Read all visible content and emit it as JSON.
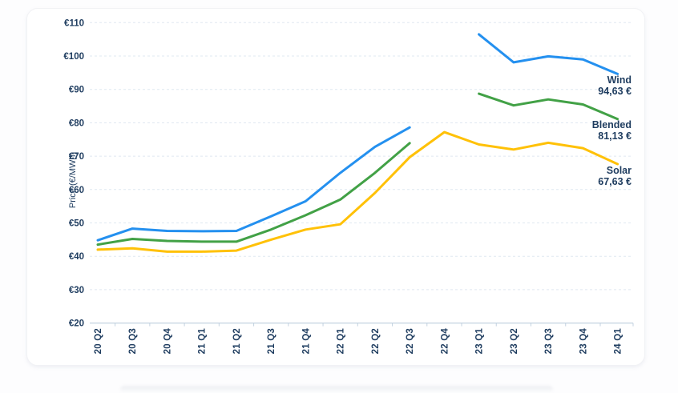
{
  "colors": {
    "wind_line": "#2490EF",
    "blended_line": "#42A146",
    "solar_line": "#FFC107",
    "text_navy": "#1E3C5F",
    "gridline": "#DFE8F1",
    "axis_line": "#C3D2E0",
    "card_background": "#FFFFFF"
  },
  "chart_data": {
    "type": "line",
    "title": "",
    "xlabel": "",
    "ylabel": "Price (€/MWh)",
    "ylim": [
      20,
      110
    ],
    "grid": "horizontal-dashed",
    "legend_position": "end-of-line-labels",
    "categories": [
      "20 Q2",
      "20 Q3",
      "20 Q4",
      "21 Q1",
      "21 Q2",
      "21 Q3",
      "21 Q4",
      "22 Q1",
      "22 Q2",
      "22 Q3",
      "22 Q4",
      "23 Q1",
      "23 Q2",
      "23 Q3",
      "23 Q4",
      "24 Q1"
    ],
    "yticks": {
      "values": [
        110,
        100,
        90,
        80,
        70,
        60,
        50,
        40,
        30,
        20
      ],
      "labels": [
        "€110",
        "€100",
        "€90",
        "€80",
        "€70",
        "€60",
        "€50",
        "€40",
        "€30",
        "€20"
      ]
    },
    "series": [
      {
        "name": "Wind",
        "end_label": "94,63 €",
        "color_key": "wind_line",
        "values": [
          44.8,
          48.3,
          47.6,
          47.5,
          47.6,
          52,
          56.5,
          65,
          72.8,
          78.6,
          null,
          106.5,
          98.1,
          99.9,
          99,
          94.63
        ]
      },
      {
        "name": "Blended",
        "end_label": "81,13 €",
        "color_key": "blended_line",
        "values": [
          43.5,
          45.2,
          44.6,
          44.4,
          44.4,
          48,
          52.3,
          57,
          65,
          73.9,
          null,
          88.7,
          85.2,
          87,
          85.5,
          81.13
        ]
      },
      {
        "name": "Solar",
        "end_label": "67,63 €",
        "color_key": "solar_line",
        "values": [
          42,
          42.4,
          41.4,
          41.4,
          41.7,
          45,
          48,
          49.6,
          59,
          69.7,
          77.2,
          73.5,
          72,
          74,
          72.4,
          67.63
        ]
      }
    ]
  }
}
